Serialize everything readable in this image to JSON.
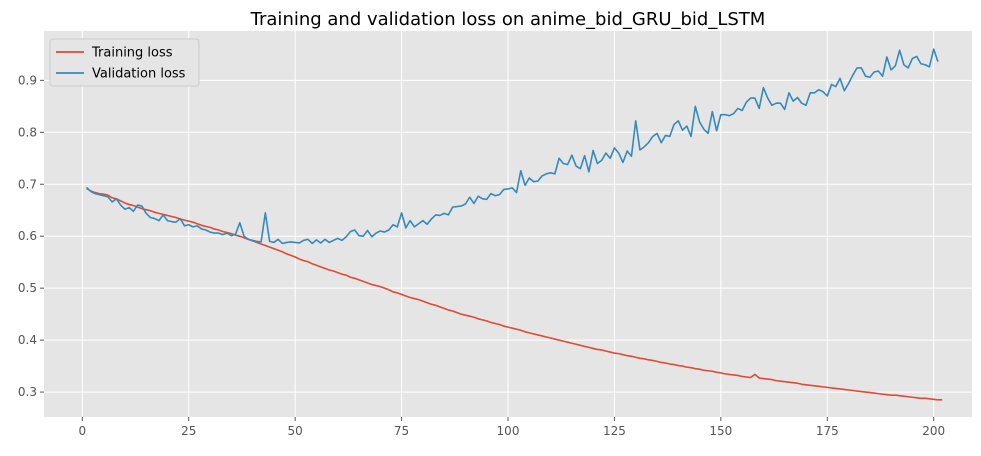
{
  "chart_data": {
    "type": "line",
    "title": "Training and validation loss on anime_bid_GRU_bid_LSTM",
    "xlabel": "",
    "ylabel": "",
    "xlim": [
      -9,
      209
    ],
    "ylim": [
      0.252,
      0.995
    ],
    "xticks": [
      0,
      25,
      50,
      75,
      100,
      125,
      150,
      175,
      200
    ],
    "yticks": [
      0.3,
      0.4,
      0.5,
      0.6,
      0.7,
      0.8,
      0.9
    ],
    "ytick_labels": [
      "0.3",
      "0.4",
      "0.5",
      "0.6",
      "0.7",
      "0.8",
      "0.9"
    ],
    "grid": true,
    "legend_position": "top-left",
    "series": [
      {
        "name": "Training loss",
        "color": "#E24A33",
        "x_start": 1,
        "x_step": 1,
        "values": [
          0.692,
          0.687,
          0.684,
          0.682,
          0.681,
          0.679,
          0.674,
          0.672,
          0.668,
          0.664,
          0.661,
          0.659,
          0.656,
          0.653,
          0.651,
          0.649,
          0.646,
          0.644,
          0.642,
          0.64,
          0.638,
          0.636,
          0.633,
          0.631,
          0.629,
          0.627,
          0.624,
          0.621,
          0.619,
          0.617,
          0.614,
          0.612,
          0.609,
          0.607,
          0.605,
          0.602,
          0.6,
          0.597,
          0.594,
          0.591,
          0.588,
          0.585,
          0.582,
          0.579,
          0.576,
          0.573,
          0.57,
          0.566,
          0.563,
          0.56,
          0.556,
          0.553,
          0.551,
          0.547,
          0.544,
          0.541,
          0.538,
          0.535,
          0.533,
          0.53,
          0.527,
          0.525,
          0.521,
          0.519,
          0.516,
          0.513,
          0.51,
          0.507,
          0.505,
          0.503,
          0.5,
          0.497,
          0.493,
          0.491,
          0.488,
          0.485,
          0.482,
          0.48,
          0.478,
          0.475,
          0.472,
          0.469,
          0.467,
          0.464,
          0.461,
          0.458,
          0.456,
          0.453,
          0.45,
          0.448,
          0.446,
          0.444,
          0.441,
          0.439,
          0.437,
          0.434,
          0.432,
          0.43,
          0.427,
          0.425,
          0.423,
          0.421,
          0.419,
          0.416,
          0.414,
          0.412,
          0.41,
          0.408,
          0.406,
          0.404,
          0.402,
          0.4,
          0.398,
          0.396,
          0.394,
          0.392,
          0.39,
          0.388,
          0.386,
          0.384,
          0.382,
          0.381,
          0.379,
          0.377,
          0.375,
          0.374,
          0.372,
          0.37,
          0.369,
          0.367,
          0.365,
          0.364,
          0.362,
          0.361,
          0.359,
          0.357,
          0.356,
          0.354,
          0.353,
          0.351,
          0.35,
          0.348,
          0.347,
          0.345,
          0.344,
          0.342,
          0.341,
          0.34,
          0.338,
          0.337,
          0.335,
          0.334,
          0.333,
          0.332,
          0.33,
          0.329,
          0.328,
          0.334,
          0.327,
          0.326,
          0.325,
          0.324,
          0.322,
          0.321,
          0.32,
          0.319,
          0.318,
          0.317,
          0.315,
          0.314,
          0.313,
          0.312,
          0.311,
          0.31,
          0.309,
          0.308,
          0.307,
          0.306,
          0.305,
          0.304,
          0.303,
          0.302,
          0.301,
          0.3,
          0.299,
          0.298,
          0.297,
          0.296,
          0.295,
          0.294,
          0.294,
          0.293,
          0.292,
          0.291,
          0.29,
          0.289,
          0.288,
          0.288,
          0.287,
          0.286,
          0.285,
          0.285
        ]
      },
      {
        "name": "Validation loss",
        "color": "#348ABD",
        "x_start": 1,
        "x_step": 1,
        "values": [
          0.694,
          0.686,
          0.682,
          0.68,
          0.678,
          0.676,
          0.666,
          0.672,
          0.66,
          0.652,
          0.655,
          0.648,
          0.66,
          0.658,
          0.644,
          0.636,
          0.634,
          0.63,
          0.641,
          0.63,
          0.628,
          0.627,
          0.634,
          0.62,
          0.622,
          0.618,
          0.62,
          0.614,
          0.612,
          0.608,
          0.606,
          0.606,
          0.603,
          0.606,
          0.601,
          0.604,
          0.626,
          0.6,
          0.594,
          0.592,
          0.59,
          0.589,
          0.645,
          0.59,
          0.588,
          0.594,
          0.586,
          0.588,
          0.589,
          0.588,
          0.587,
          0.592,
          0.594,
          0.586,
          0.593,
          0.587,
          0.594,
          0.588,
          0.592,
          0.596,
          0.592,
          0.599,
          0.609,
          0.612,
          0.601,
          0.6,
          0.611,
          0.599,
          0.606,
          0.61,
          0.608,
          0.612,
          0.622,
          0.618,
          0.645,
          0.616,
          0.63,
          0.618,
          0.624,
          0.63,
          0.623,
          0.633,
          0.641,
          0.64,
          0.644,
          0.641,
          0.656,
          0.657,
          0.658,
          0.662,
          0.675,
          0.663,
          0.677,
          0.672,
          0.671,
          0.682,
          0.678,
          0.68,
          0.69,
          0.691,
          0.693,
          0.684,
          0.726,
          0.698,
          0.712,
          0.705,
          0.706,
          0.716,
          0.72,
          0.722,
          0.72,
          0.75,
          0.74,
          0.738,
          0.756,
          0.735,
          0.73,
          0.755,
          0.724,
          0.765,
          0.74,
          0.746,
          0.76,
          0.75,
          0.77,
          0.76,
          0.742,
          0.764,
          0.754,
          0.822,
          0.766,
          0.772,
          0.78,
          0.792,
          0.798,
          0.78,
          0.794,
          0.792,
          0.815,
          0.822,
          0.804,
          0.812,
          0.792,
          0.85,
          0.82,
          0.806,
          0.798,
          0.84,
          0.803,
          0.834,
          0.834,
          0.832,
          0.836,
          0.846,
          0.842,
          0.858,
          0.866,
          0.866,
          0.846,
          0.886,
          0.866,
          0.852,
          0.856,
          0.856,
          0.844,
          0.876,
          0.86,
          0.867,
          0.856,
          0.852,
          0.876,
          0.876,
          0.882,
          0.878,
          0.87,
          0.892,
          0.888,
          0.904,
          0.88,
          0.894,
          0.91,
          0.924,
          0.924,
          0.908,
          0.906,
          0.916,
          0.918,
          0.908,
          0.945,
          0.92,
          0.928,
          0.958,
          0.93,
          0.924,
          0.942,
          0.946,
          0.932,
          0.93,
          0.926,
          0.96,
          0.936
        ]
      }
    ]
  }
}
